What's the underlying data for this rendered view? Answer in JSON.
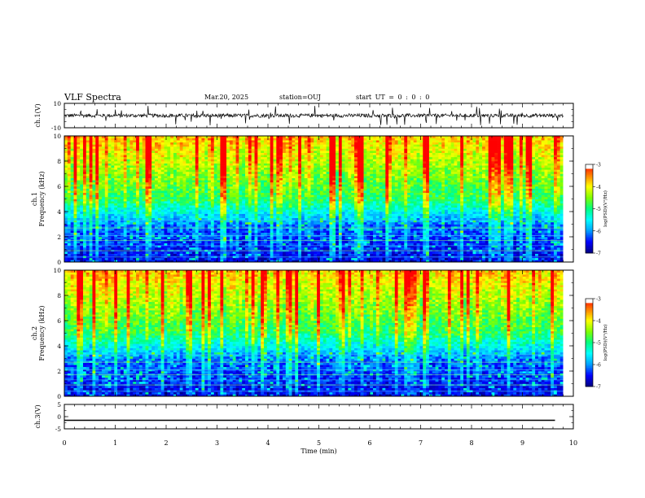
{
  "header": {
    "title": "VLF Spectra",
    "date": "Mar.20, 2025",
    "station": "station=OUJ",
    "start": "start UT =  0 : 0 : 0"
  },
  "colors": {
    "colormap": [
      "#000080",
      "#0000ff",
      "#00a0ff",
      "#00ffff",
      "#00ff80",
      "#80ff00",
      "#ffff00",
      "#ff8000",
      "#ff0000",
      "#ffffff"
    ],
    "waveform": "#000000",
    "frame": "#000000"
  },
  "chart_data": [
    {
      "type": "line",
      "name": "ch1-waveform",
      "ylabel": "ch.1(V)",
      "ylim": [
        -10,
        10
      ],
      "yticks": [
        "10",
        "-10"
      ],
      "xlim": [
        0,
        10
      ],
      "values_description_ranges": {
        "baseline": 0,
        "typical_amplitude": 1.5,
        "spike_amplitude": 6
      }
    },
    {
      "type": "heatmap",
      "name": "ch1-spectrogram",
      "ylabel": "ch.1\nFrequency (kHz)",
      "ylim": [
        0,
        10
      ],
      "yticks": [
        "0",
        "2",
        "4",
        "6",
        "8",
        "10"
      ],
      "xlim": [
        0,
        10
      ],
      "colorbar": {
        "label": "log(PSD)(V²/Hz)",
        "range": [
          -7,
          -3
        ],
        "ticks": [
          "-3",
          "-4",
          "-5",
          "-6",
          "-7"
        ]
      }
    },
    {
      "type": "heatmap",
      "name": "ch2-spectrogram",
      "ylabel": "ch.2\nFrequency (kHz)",
      "ylim": [
        0,
        10
      ],
      "yticks": [
        "0",
        "2",
        "4",
        "6",
        "8",
        "10"
      ],
      "xlim": [
        0,
        10
      ],
      "colorbar": {
        "label": "log(PSD)(V²/Hz)",
        "range": [
          -7,
          -3
        ],
        "ticks": [
          "-3",
          "-4",
          "-5",
          "-6",
          "-7"
        ]
      }
    },
    {
      "type": "line",
      "name": "ch3-waveform",
      "ylabel": "ch.3(V)",
      "ylim": [
        -5,
        5
      ],
      "yticks": [
        "5",
        "0",
        "-5"
      ],
      "xlim": [
        0,
        10
      ],
      "values": [
        0,
        0
      ]
    }
  ],
  "xaxis": {
    "label": "Time (min)",
    "ticks": [
      "0",
      "1",
      "2",
      "3",
      "4",
      "5",
      "6",
      "7",
      "8",
      "9",
      "10"
    ],
    "data_extent": 9.8
  }
}
